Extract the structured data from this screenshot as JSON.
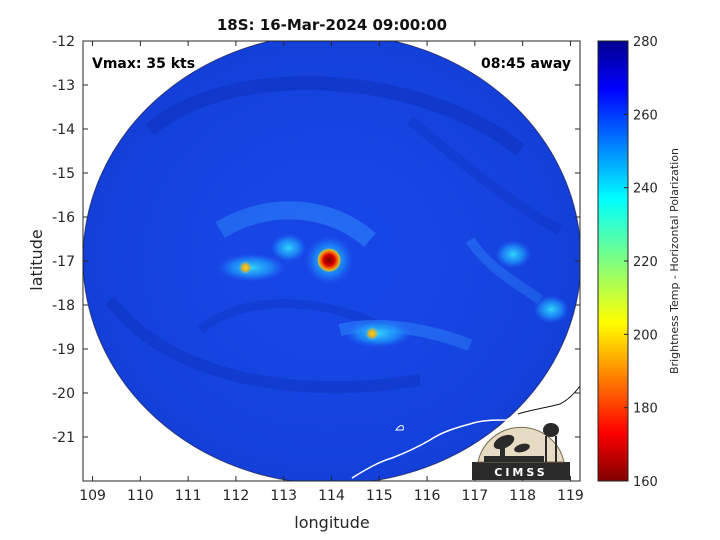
{
  "title": "18S: 16-Mar-2024 09:00:00",
  "annotations": {
    "vmax": "Vmax: 35 kts",
    "time_away": "08:45 away"
  },
  "axes": {
    "xlabel": "longitude",
    "ylabel": "latitude",
    "xlim": [
      108.8,
      119.2
    ],
    "ylim": [
      -22,
      -12
    ],
    "xticks": [
      "109",
      "110",
      "111",
      "112",
      "113",
      "114",
      "115",
      "116",
      "117",
      "118",
      "119"
    ],
    "yticks": [
      "-12",
      "-13",
      "-14",
      "-15",
      "-16",
      "-17",
      "-18",
      "-19",
      "-20",
      "-21"
    ]
  },
  "colorbar": {
    "label": "Brightness Temp - Horizontal Polarization",
    "range": [
      160,
      280
    ],
    "ticks": [
      "280",
      "260",
      "240",
      "220",
      "200",
      "180",
      "160"
    ],
    "colormap": "jet"
  },
  "swath": {
    "center": [
      114.3,
      -16.9
    ],
    "background_temp_k": 262,
    "warm_features": [
      {
        "lon": 113.95,
        "lat": -16.98,
        "temp_k": 168,
        "label": "center core"
      },
      {
        "lon": 112.2,
        "lat": -17.15,
        "temp_k": 205
      },
      {
        "lon": 114.85,
        "lat": -18.65,
        "temp_k": 210
      },
      {
        "lon": 113.1,
        "lat": -16.7,
        "temp_k": 238
      },
      {
        "lon": 117.8,
        "lat": -16.85,
        "temp_k": 240
      },
      {
        "lon": 118.6,
        "lat": -18.1,
        "temp_k": 245
      }
    ]
  },
  "logo": {
    "text": "CIMSS"
  },
  "colors": {
    "ocean_background": "#1746e6",
    "deep_band": "#0a2fb5",
    "frame": "#262626",
    "coastline": "#ffffff"
  }
}
